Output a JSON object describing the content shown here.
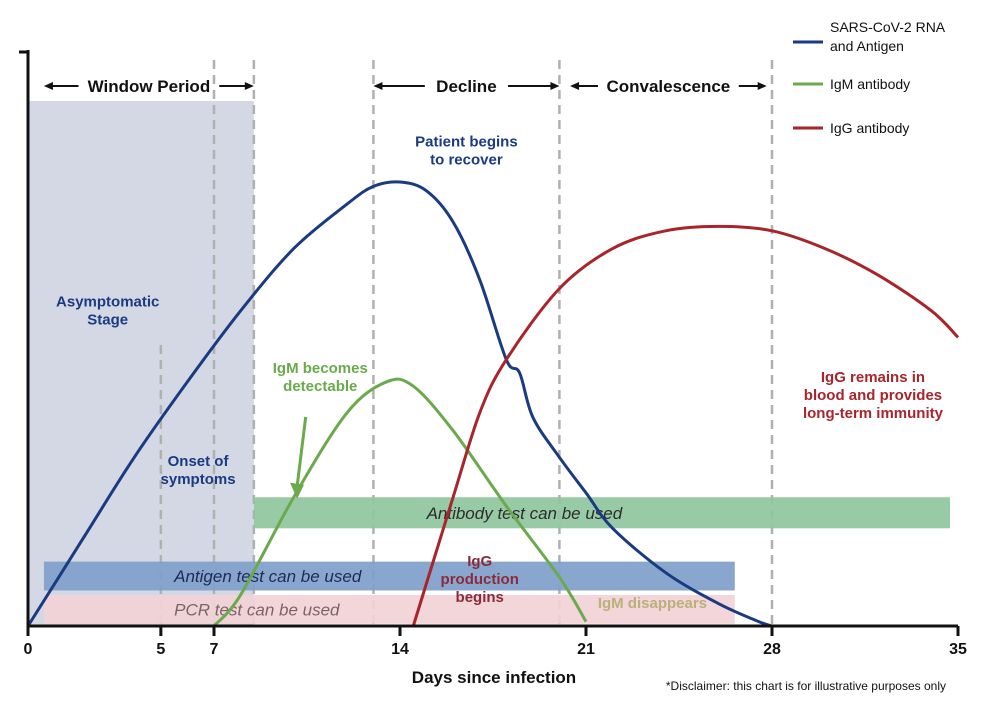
{
  "chart_data": {
    "type": "line",
    "title": "",
    "xlabel": "Days since infection",
    "ylabel": "",
    "xlim": [
      0,
      35
    ],
    "ylim": [
      0,
      100
    ],
    "x_ticks": [
      0,
      5,
      7,
      14,
      21,
      28,
      35
    ],
    "grid": false,
    "legend_position": "top-right",
    "colors": {
      "rna": "#1a3a82",
      "igm": "#6aaa4c",
      "igg": "#a8252b",
      "window": "#d3d8e4",
      "antibody_band": "#8fc59e",
      "antigen_band": "#7f9fca",
      "pcr_band": "#f2d3d6",
      "vline": "#b0b0b0"
    },
    "series": [
      {
        "name": "SARS-CoV-2 RNA\nand Antigen",
        "key": "rna",
        "points": [
          [
            0,
            0
          ],
          [
            2,
            19
          ],
          [
            4,
            38
          ],
          [
            6,
            55
          ],
          [
            8,
            71
          ],
          [
            10,
            85
          ],
          [
            12,
            95
          ],
          [
            13,
            99
          ],
          [
            14,
            100
          ],
          [
            15,
            98
          ],
          [
            16,
            91
          ],
          [
            17,
            78
          ],
          [
            18,
            60
          ],
          [
            18.5,
            57
          ],
          [
            19,
            47
          ],
          [
            20,
            38
          ],
          [
            21,
            30
          ],
          [
            22,
            22
          ],
          [
            24,
            12
          ],
          [
            26,
            5
          ],
          [
            27.5,
            1
          ],
          [
            28,
            0
          ]
        ]
      },
      {
        "name": "IgM antibody",
        "key": "igm",
        "points": [
          [
            7,
            0
          ],
          [
            8,
            7
          ],
          [
            10,
            29
          ],
          [
            12,
            48
          ],
          [
            13.5,
            55
          ],
          [
            14.5,
            54
          ],
          [
            16,
            44
          ],
          [
            18,
            27
          ],
          [
            20,
            11
          ],
          [
            21,
            1
          ]
        ]
      },
      {
        "name": "IgG antibody",
        "key": "igg",
        "points": [
          [
            14.5,
            0
          ],
          [
            16,
            29
          ],
          [
            17,
            48
          ],
          [
            18,
            60
          ],
          [
            20,
            76
          ],
          [
            22,
            85
          ],
          [
            24,
            89
          ],
          [
            26,
            90
          ],
          [
            28,
            89
          ],
          [
            30,
            85
          ],
          [
            32,
            79
          ],
          [
            34,
            71
          ],
          [
            35,
            65
          ]
        ]
      }
    ],
    "legend": [
      {
        "key": "rna",
        "label": "SARS-CoV-2 RNA\nand Antigen"
      },
      {
        "key": "igm",
        "label": "IgM antibody"
      },
      {
        "key": "igg",
        "label": "IgG antibody"
      }
    ],
    "vlines": [
      5,
      7,
      13,
      20,
      28
    ],
    "shaded_region": {
      "from": 0,
      "to": 8.5
    },
    "phases": [
      {
        "label": "Window Period",
        "from": 0.6,
        "to": 8.5
      },
      {
        "label": "Decline",
        "from": 13,
        "to": 20
      },
      {
        "label": "Convalescence",
        "from": 20.4,
        "to": 27.8
      }
    ],
    "bands": [
      {
        "label": "Antibody test can be used",
        "from": 8.5,
        "to": 34.7,
        "level_low": 22,
        "level_high": 29,
        "color": "antibody_band",
        "text_color": "#2c2c2c",
        "text_x": 15
      },
      {
        "label": "Antigen test can be used",
        "from": 0.6,
        "to": 26.6,
        "level_low": 8,
        "level_high": 14.5,
        "color": "antigen_band",
        "text_color": "#1e2b55",
        "text_x": 5.5
      },
      {
        "label": "PCR test can be used",
        "from": 0.6,
        "to": 26.6,
        "level_low": 0.5,
        "level_high": 7,
        "color": "pcr_band",
        "text_color": "#7a6468",
        "text_x": 5.5
      }
    ],
    "annotations": [
      {
        "lines": [
          "Patient begins",
          "to recover"
        ],
        "x": 16.5,
        "level": 108,
        "color": "#1a3a82"
      },
      {
        "lines": [
          "Asymptomatic",
          "Stage"
        ],
        "x": 3,
        "level": 72,
        "color": "#1a3a82"
      },
      {
        "lines": [
          "IgM becomes",
          "detectable"
        ],
        "x": 11,
        "level": 57,
        "color": "#6aaa4c"
      },
      {
        "lines": [
          "Onset of",
          "symptoms"
        ],
        "x": 6.4,
        "level": 36,
        "color": "#1a3a82"
      },
      {
        "lines": [
          "IgG remains in",
          "blood and provides",
          "long-term immunity"
        ],
        "x": 31.8,
        "level": 55,
        "color": "#a8252b"
      },
      {
        "lines": [
          "IgG",
          "production",
          "begins"
        ],
        "x": 17,
        "level": 13.5,
        "color": "#8a2b3b"
      },
      {
        "lines": [
          "IgM disappears"
        ],
        "x": 23.5,
        "level": 4,
        "color": "#b9b07a"
      }
    ],
    "igm_arrow": {
      "from": [
        10,
        48
      ],
      "to": [
        9.9,
        30
      ]
    }
  },
  "disclaimer": "*Disclaimer: this chart is for illustrative purposes only"
}
